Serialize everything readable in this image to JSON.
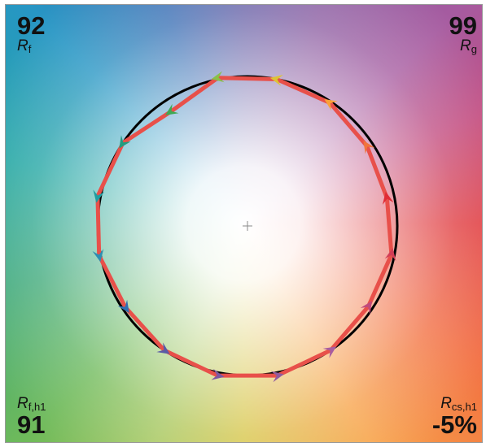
{
  "colors": {
    "reference_circle": "#000000",
    "test_polygon": "#e8504a",
    "center_mark": "#8a8a8a",
    "hue_bins": [
      "#e02b35",
      "#f1743b",
      "#f9a23a",
      "#dcc337",
      "#8ac049",
      "#3fa853",
      "#239b80",
      "#1f9da0",
      "#2d8eb2",
      "#2f6fb4",
      "#5a5ba5",
      "#7c57a1",
      "#915a9d",
      "#a85da0",
      "#c14a7c",
      "#d23d56"
    ]
  },
  "metrics": {
    "rf": {
      "value": "92",
      "symbol": "R",
      "sub": "f"
    },
    "rg": {
      "value": "99",
      "symbol": "R",
      "sub": "g"
    },
    "rf_h1": {
      "value": "91",
      "symbol": "R",
      "sub": "f,h1"
    },
    "rcs_h1": {
      "value": "-5%",
      "symbol": "R",
      "sub": "cs,h1"
    }
  },
  "chart_data": {
    "type": "color_vector_graphic",
    "reference_radius": 1.0,
    "hue_bins": [
      {
        "bin": 1,
        "hue_angle_deg": 11.25,
        "radius_ratio": 0.95
      },
      {
        "bin": 2,
        "hue_angle_deg": 33.75,
        "radius_ratio": 0.96
      },
      {
        "bin": 3,
        "hue_angle_deg": 56.25,
        "radius_ratio": 0.99
      },
      {
        "bin": 4,
        "hue_angle_deg": 78.75,
        "radius_ratio": 1.0
      },
      {
        "bin": 5,
        "hue_angle_deg": 101.25,
        "radius_ratio": 1.01
      },
      {
        "bin": 6,
        "hue_angle_deg": 123.75,
        "radius_ratio": 0.92
      },
      {
        "bin": 7,
        "hue_angle_deg": 146.25,
        "radius_ratio": 1.0
      },
      {
        "bin": 8,
        "hue_angle_deg": 168.75,
        "radius_ratio": 1.02
      },
      {
        "bin": 9,
        "hue_angle_deg": 191.25,
        "radius_ratio": 1.01
      },
      {
        "bin": 10,
        "hue_angle_deg": 213.75,
        "radius_ratio": 0.98
      },
      {
        "bin": 11,
        "hue_angle_deg": 236.25,
        "radius_ratio": 1.0
      },
      {
        "bin": 12,
        "hue_angle_deg": 258.75,
        "radius_ratio": 1.02
      },
      {
        "bin": 13,
        "hue_angle_deg": 281.25,
        "radius_ratio": 1.02
      },
      {
        "bin": 14,
        "hue_angle_deg": 303.75,
        "radius_ratio": 1.0
      },
      {
        "bin": 15,
        "hue_angle_deg": 326.25,
        "radius_ratio": 0.97
      },
      {
        "bin": 16,
        "hue_angle_deg": 348.75,
        "radius_ratio": 0.98
      }
    ]
  }
}
